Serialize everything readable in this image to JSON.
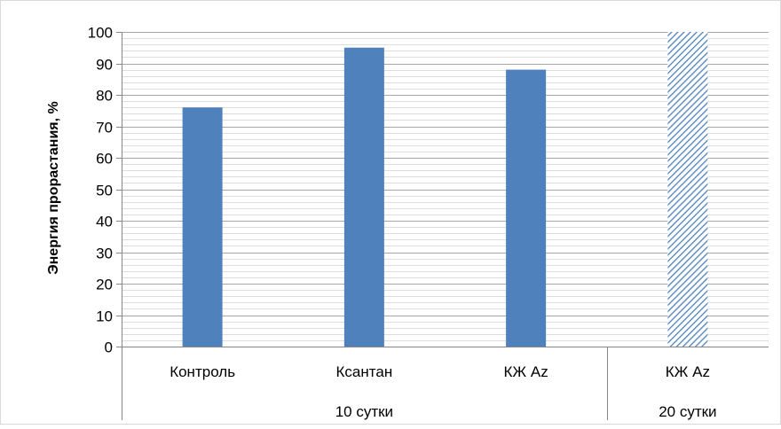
{
  "chart_data": {
    "type": "bar",
    "ylabel": "Энергия прорастания, %",
    "xlabel": "",
    "ylim": [
      0,
      100
    ],
    "ytick_step": 10,
    "minor_gridlines_per_major": 5,
    "grid": true,
    "categories": [
      "Контроль",
      "Ксантан",
      "КЖ Az",
      "КЖ Az"
    ],
    "values": [
      76,
      95,
      88,
      100
    ],
    "groups": [
      {
        "label": "10 сутки",
        "count": 3
      },
      {
        "label": "20 сутки",
        "count": 1
      }
    ],
    "bar_styles": [
      "solid",
      "solid",
      "solid",
      "hatched"
    ],
    "colors": {
      "bar": "#4f81bd",
      "grid": "#a6a6a6",
      "axis": "#868686",
      "frame": "#d9d9d9"
    }
  }
}
